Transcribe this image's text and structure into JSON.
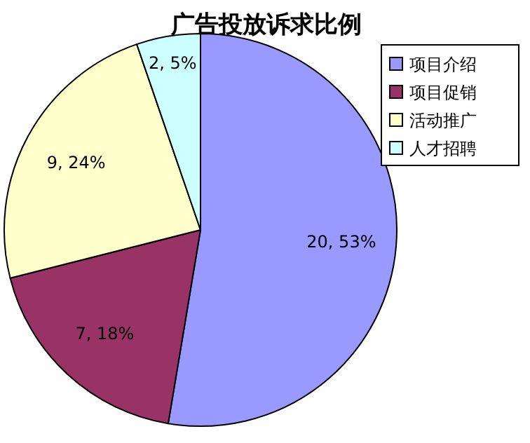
{
  "chart_data": {
    "type": "pie",
    "title": "广告投放诉求比例",
    "categories": [
      "项目介绍",
      "项目促销",
      "活动推广",
      "人才招聘"
    ],
    "values": [
      20,
      7,
      9,
      2
    ],
    "colors": [
      "#9999ff",
      "#993366",
      "#ffffcc",
      "#ccffff"
    ],
    "value_labels": [
      "20, 53%",
      "7, 18%",
      "9, 24%",
      "2, 5%"
    ],
    "legend": "top right"
  }
}
